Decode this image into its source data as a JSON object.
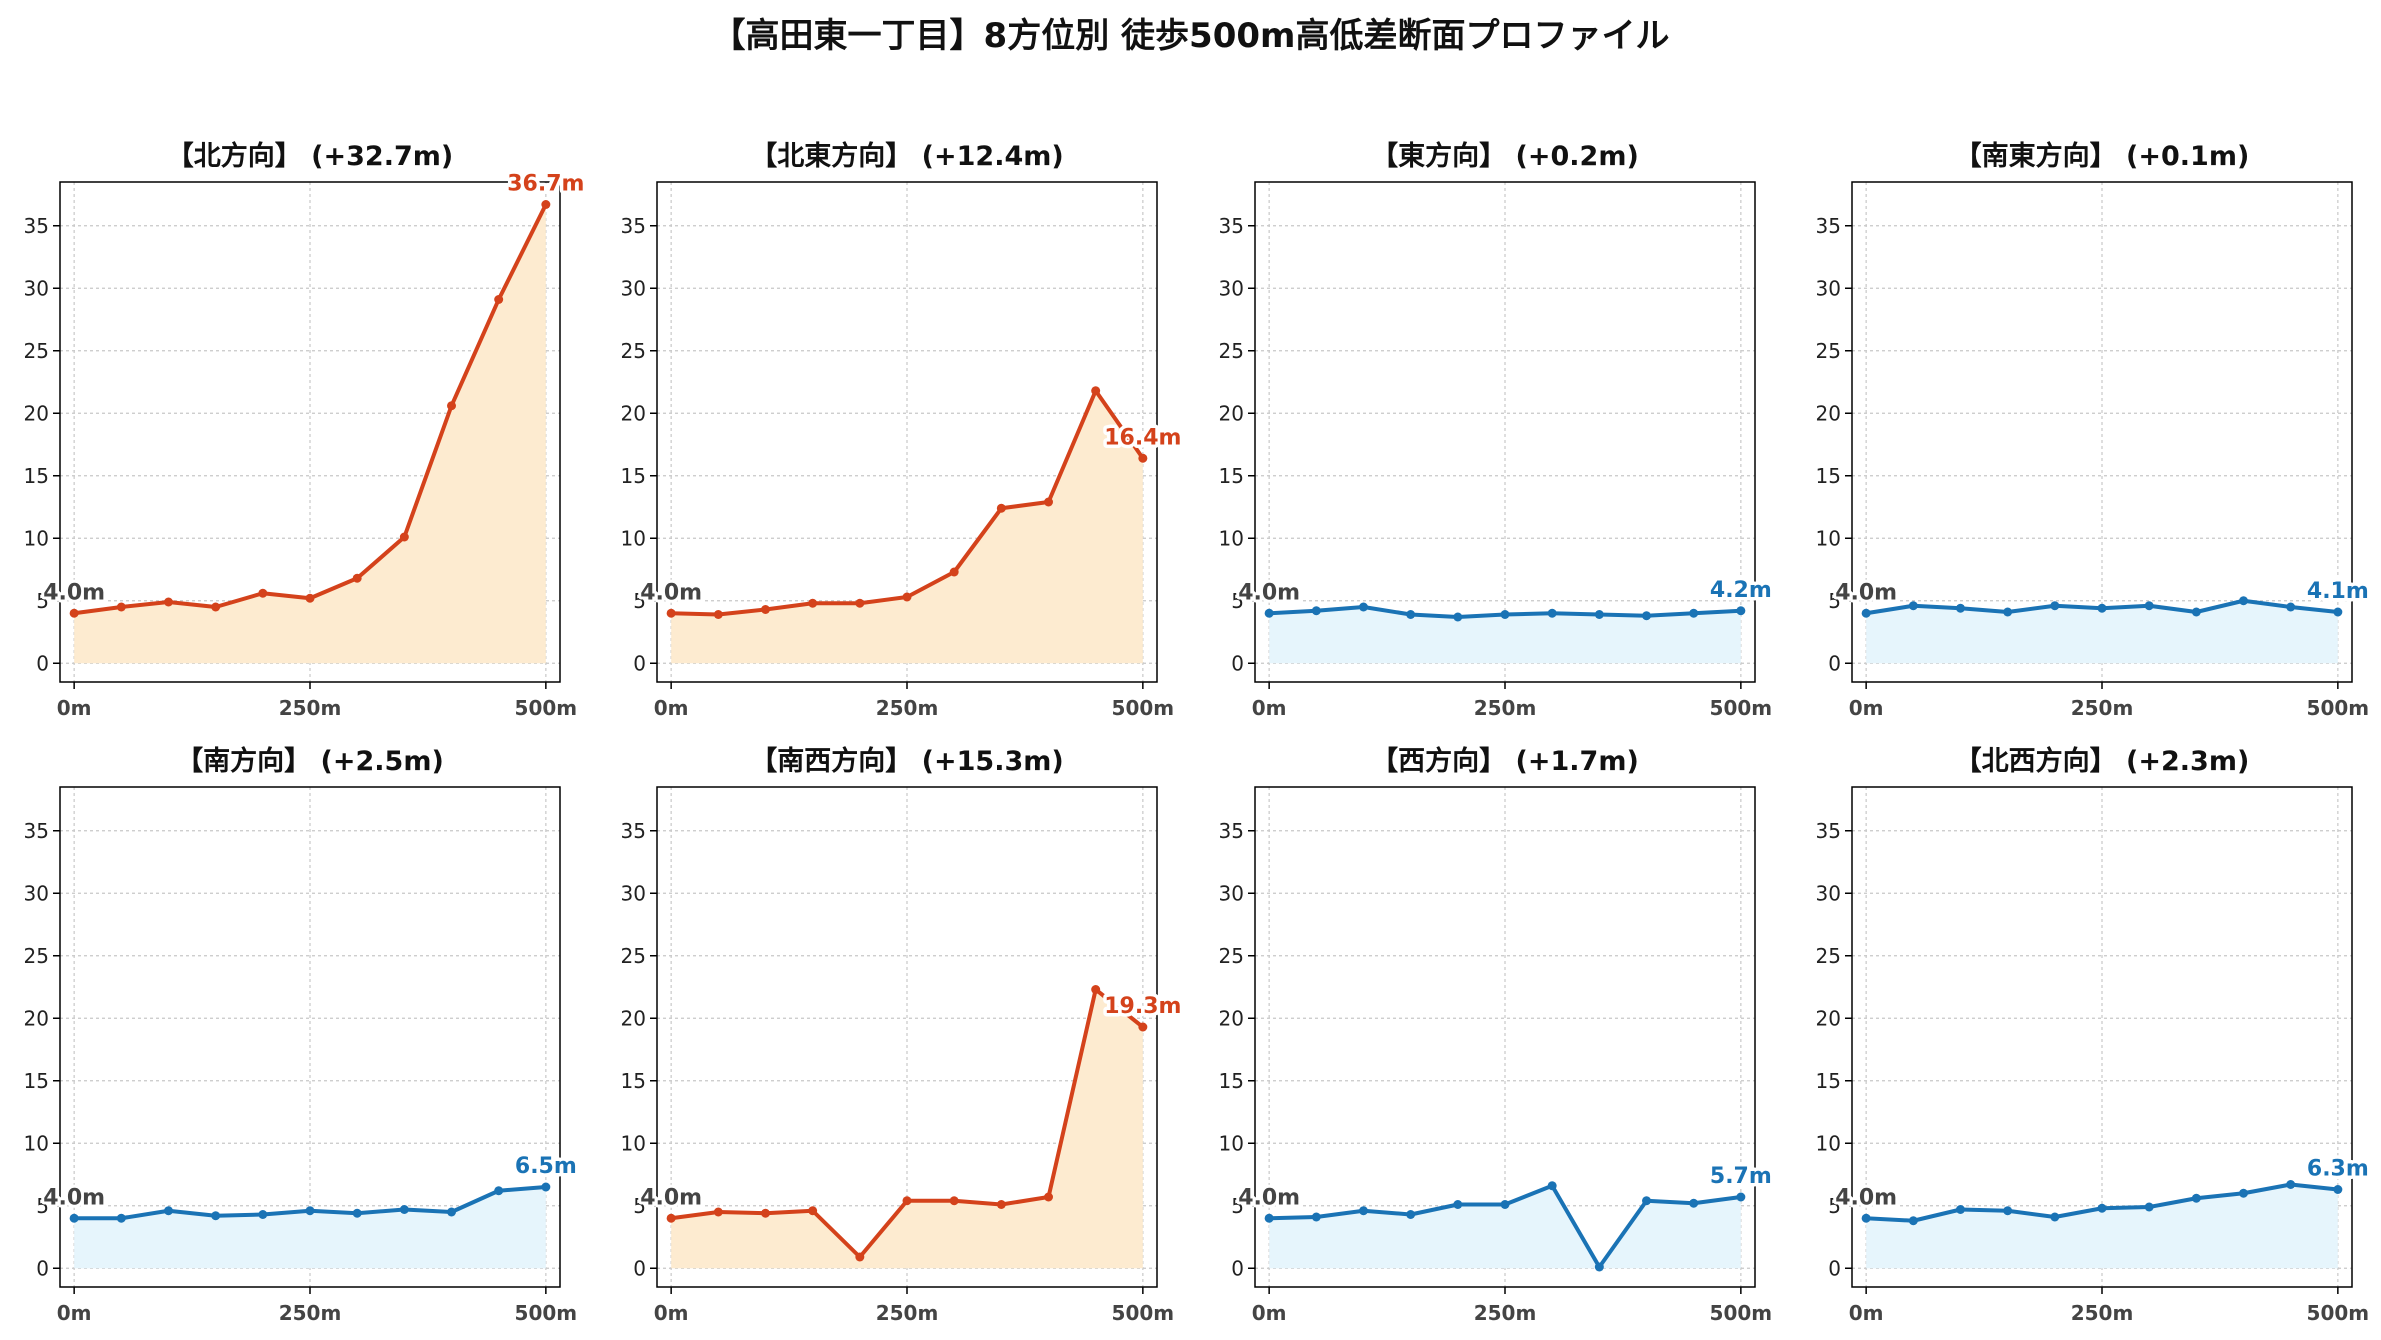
{
  "title": "【高田東一丁目】8方位別 徒歩500m高低差断面プロファイル",
  "colors": {
    "up_line": "#d4421b",
    "up_fill": "#fdebd0",
    "flat_line": "#1a73b5",
    "flat_fill": "#e6f5fc",
    "start_label": "#444444",
    "grid": "#c8c8c8"
  },
  "chart_data": [
    {
      "type": "line",
      "title": "【北方向】 (+32.7m)",
      "x": [
        0,
        50,
        100,
        150,
        200,
        250,
        300,
        350,
        400,
        450,
        500
      ],
      "values": [
        4.0,
        4.5,
        4.9,
        4.5,
        5.6,
        5.2,
        6.8,
        10.1,
        20.6,
        29.1,
        36.7
      ],
      "start_label": "4.0m",
      "end_label": "36.7m",
      "trend": "up",
      "xticks": [
        "0m",
        "250m",
        "500m"
      ],
      "yticks": [
        0,
        5,
        10,
        15,
        20,
        25,
        30,
        35
      ],
      "ylim": [
        -1.5,
        38.5
      ],
      "grid": true
    },
    {
      "type": "line",
      "title": "【北東方向】 (+12.4m)",
      "x": [
        0,
        50,
        100,
        150,
        200,
        250,
        300,
        350,
        400,
        450,
        500
      ],
      "values": [
        4.0,
        3.9,
        4.3,
        4.8,
        4.8,
        5.3,
        7.3,
        12.4,
        12.9,
        21.8,
        16.4
      ],
      "start_label": "4.0m",
      "end_label": "16.4m",
      "trend": "up",
      "xticks": [
        "0m",
        "250m",
        "500m"
      ],
      "yticks": [
        0,
        5,
        10,
        15,
        20,
        25,
        30,
        35
      ],
      "ylim": [
        -1.5,
        38.5
      ],
      "grid": true
    },
    {
      "type": "line",
      "title": "【東方向】 (+0.2m)",
      "x": [
        0,
        50,
        100,
        150,
        200,
        250,
        300,
        350,
        400,
        450,
        500
      ],
      "values": [
        4.0,
        4.2,
        4.5,
        3.9,
        3.7,
        3.9,
        4.0,
        3.9,
        3.8,
        4.0,
        4.2
      ],
      "start_label": "4.0m",
      "end_label": "4.2m",
      "trend": "flat",
      "xticks": [
        "0m",
        "250m",
        "500m"
      ],
      "yticks": [
        0,
        5,
        10,
        15,
        20,
        25,
        30,
        35
      ],
      "ylim": [
        -1.5,
        38.5
      ],
      "grid": true
    },
    {
      "type": "line",
      "title": "【南東方向】 (+0.1m)",
      "x": [
        0,
        50,
        100,
        150,
        200,
        250,
        300,
        350,
        400,
        450,
        500
      ],
      "values": [
        4.0,
        4.6,
        4.4,
        4.1,
        4.6,
        4.4,
        4.6,
        4.1,
        5.0,
        4.5,
        4.1
      ],
      "start_label": "4.0m",
      "end_label": "4.1m",
      "trend": "flat",
      "xticks": [
        "0m",
        "250m",
        "500m"
      ],
      "yticks": [
        0,
        5,
        10,
        15,
        20,
        25,
        30,
        35
      ],
      "ylim": [
        -1.5,
        38.5
      ],
      "grid": true
    },
    {
      "type": "line",
      "title": "【南方向】 (+2.5m)",
      "x": [
        0,
        50,
        100,
        150,
        200,
        250,
        300,
        350,
        400,
        450,
        500
      ],
      "values": [
        4.0,
        4.0,
        4.6,
        4.2,
        4.3,
        4.6,
        4.4,
        4.7,
        4.5,
        6.2,
        6.5
      ],
      "start_label": "4.0m",
      "end_label": "6.5m",
      "trend": "flat",
      "xticks": [
        "0m",
        "250m",
        "500m"
      ],
      "yticks": [
        0,
        5,
        10,
        15,
        20,
        25,
        30,
        35
      ],
      "ylim": [
        -1.5,
        38.5
      ],
      "grid": true
    },
    {
      "type": "line",
      "title": "【南西方向】 (+15.3m)",
      "x": [
        0,
        50,
        100,
        150,
        200,
        250,
        300,
        350,
        400,
        450,
        500
      ],
      "values": [
        4.0,
        4.5,
        4.4,
        4.6,
        0.9,
        5.4,
        5.4,
        5.1,
        5.7,
        22.3,
        19.3
      ],
      "start_label": "4.0m",
      "end_label": "19.3m",
      "trend": "up",
      "xticks": [
        "0m",
        "250m",
        "500m"
      ],
      "yticks": [
        0,
        5,
        10,
        15,
        20,
        25,
        30,
        35
      ],
      "ylim": [
        -1.5,
        38.5
      ],
      "grid": true
    },
    {
      "type": "line",
      "title": "【西方向】 (+1.7m)",
      "x": [
        0,
        50,
        100,
        150,
        200,
        250,
        300,
        350,
        400,
        450,
        500
      ],
      "values": [
        4.0,
        4.1,
        4.6,
        4.3,
        5.1,
        5.1,
        6.6,
        0.1,
        5.4,
        5.2,
        5.7
      ],
      "start_label": "4.0m",
      "end_label": "5.7m",
      "trend": "flat",
      "xticks": [
        "0m",
        "250m",
        "500m"
      ],
      "yticks": [
        0,
        5,
        10,
        15,
        20,
        25,
        30,
        35
      ],
      "ylim": [
        -1.5,
        38.5
      ],
      "grid": true
    },
    {
      "type": "line",
      "title": "【北西方向】 (+2.3m)",
      "x": [
        0,
        50,
        100,
        150,
        200,
        250,
        300,
        350,
        400,
        450,
        500
      ],
      "values": [
        4.0,
        3.8,
        4.7,
        4.6,
        4.1,
        4.8,
        4.9,
        5.6,
        6.0,
        6.7,
        6.3
      ],
      "start_label": "4.0m",
      "end_label": "6.3m",
      "trend": "flat",
      "xticks": [
        "0m",
        "250m",
        "500m"
      ],
      "yticks": [
        0,
        5,
        10,
        15,
        20,
        25,
        30,
        35
      ],
      "ylim": [
        -1.5,
        38.5
      ],
      "grid": true
    }
  ]
}
